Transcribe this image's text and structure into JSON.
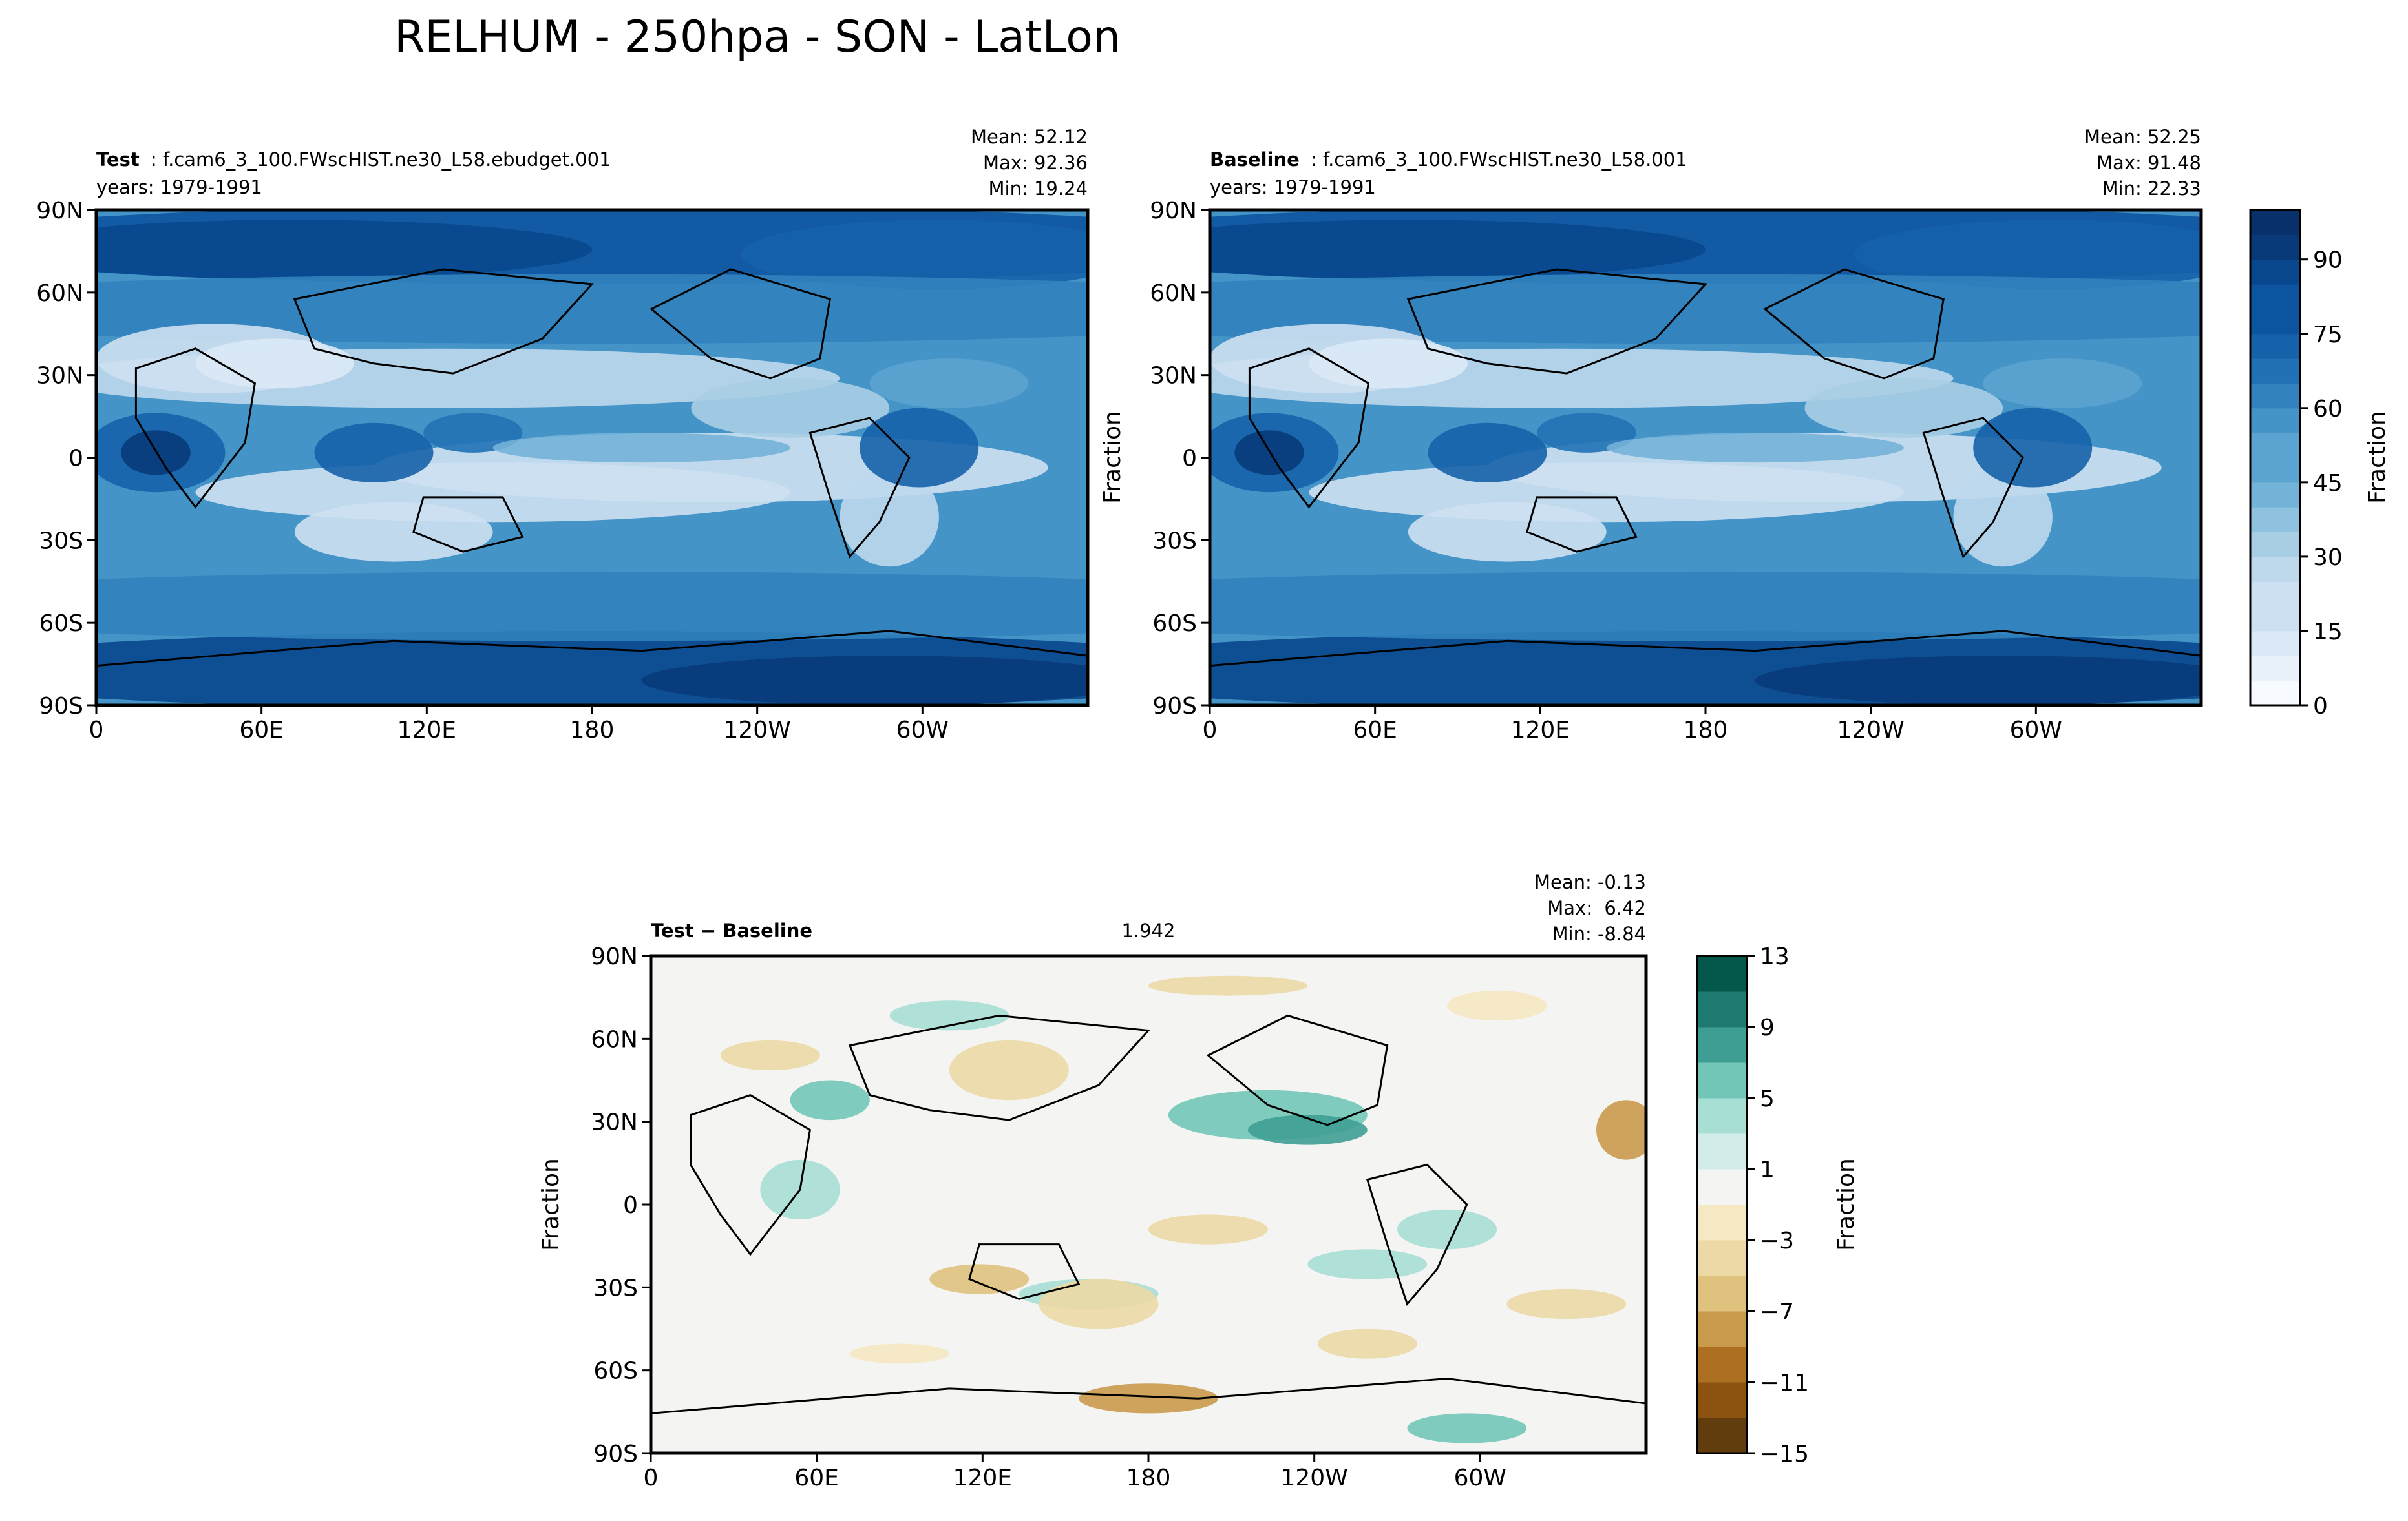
{
  "figure": {
    "title": "RELHUM - 250hpa - SON - LatLon"
  },
  "chart_data": [
    {
      "type": "heatmap",
      "panel": "test",
      "title_bold": "Test",
      "title_rest": ": f.cam6_3_100.FWscHIST.ne30_L58.ebudget.001",
      "years": "years: 1979-1991",
      "stats": [
        "Mean: 52.12",
        "Max: 92.36",
        "Min: 19.24"
      ],
      "ylabel": "",
      "x_ticks": [
        "0",
        "60E",
        "120E",
        "180",
        "120W",
        "60W"
      ],
      "y_ticks": [
        "90N",
        "60N",
        "30N",
        "0",
        "30S",
        "60S",
        "90S"
      ],
      "xlim": [
        0,
        360
      ],
      "ylim": [
        -90,
        90
      ],
      "colormap": "blues",
      "vlim": [
        0,
        100
      ],
      "mean": 52.12,
      "max": 92.36,
      "min": 19.24
    },
    {
      "type": "heatmap",
      "panel": "baseline",
      "title_bold": "Baseline",
      "title_rest": ": f.cam6_3_100.FWscHIST.ne30_L58.001",
      "years": "years: 1979-1991",
      "stats": [
        "Mean: 52.25",
        "Max: 91.48",
        "Min: 22.33"
      ],
      "ylabel": "Fraction",
      "x_ticks": [
        "0",
        "60E",
        "120E",
        "180",
        "120W",
        "60W"
      ],
      "y_ticks": [
        "90N",
        "60N",
        "30N",
        "0",
        "30S",
        "60S",
        "90S"
      ],
      "xlim": [
        0,
        360
      ],
      "ylim": [
        -90,
        90
      ],
      "colormap": "blues",
      "vlim": [
        0,
        100
      ],
      "mean": 52.25,
      "max": 91.48,
      "min": 22.33,
      "colorbar": {
        "label": "Fraction",
        "ticks": [
          "0",
          "15",
          "30",
          "45",
          "60",
          "75",
          "90"
        ],
        "levels": [
          0,
          5,
          10,
          15,
          20,
          25,
          30,
          35,
          40,
          45,
          50,
          55,
          60,
          65,
          70,
          75,
          80,
          85,
          90,
          95,
          100
        ]
      }
    },
    {
      "type": "heatmap",
      "panel": "difference",
      "title_bold": "Test − Baseline",
      "rmse": 1.942,
      "stats": [
        "Mean: -0.13",
        "Max:  6.42",
        "Min: -8.84"
      ],
      "ylabel": "Fraction",
      "x_ticks": [
        "0",
        "60E",
        "120E",
        "180",
        "120W",
        "60W"
      ],
      "y_ticks": [
        "90N",
        "60N",
        "30N",
        "0",
        "30S",
        "60S",
        "90S"
      ],
      "xlim": [
        0,
        360
      ],
      "ylim": [
        -90,
        90
      ],
      "colormap": "brown-teal diverging",
      "vlim": [
        -15,
        13
      ],
      "mean": -0.13,
      "max": 6.42,
      "min": -8.84,
      "colorbar": {
        "label": "Fraction",
        "ticks": [
          "−15",
          "−11",
          "−7",
          "−3",
          "1",
          "5",
          "9",
          "13"
        ],
        "levels": [
          -15,
          -13,
          -11,
          -9,
          -7,
          -5,
          -3,
          -1,
          1,
          3,
          5,
          7,
          9,
          11,
          13
        ]
      }
    }
  ],
  "colors": {
    "blues": [
      "#f7fbff",
      "#e9f2fb",
      "#dbe9f6",
      "#cde0f1",
      "#bed8ec",
      "#a8cee4",
      "#8fc2de",
      "#74b3d8",
      "#5ba3d0",
      "#4594c7",
      "#3182bd",
      "#2171b5",
      "#1662aa",
      "#0c54a0",
      "#08478d",
      "#083a7a",
      "#08306b"
    ],
    "diverging": [
      "#613c0d",
      "#8c520f",
      "#ad7022",
      "#c99a4c",
      "#dfc27d",
      "#ecd9a5",
      "#f6e8c3",
      "#f4f4f2",
      "#d2ede9",
      "#a7dfd5",
      "#72c6b8",
      "#3f9e93",
      "#1e7a70",
      "#04574b"
    ]
  }
}
